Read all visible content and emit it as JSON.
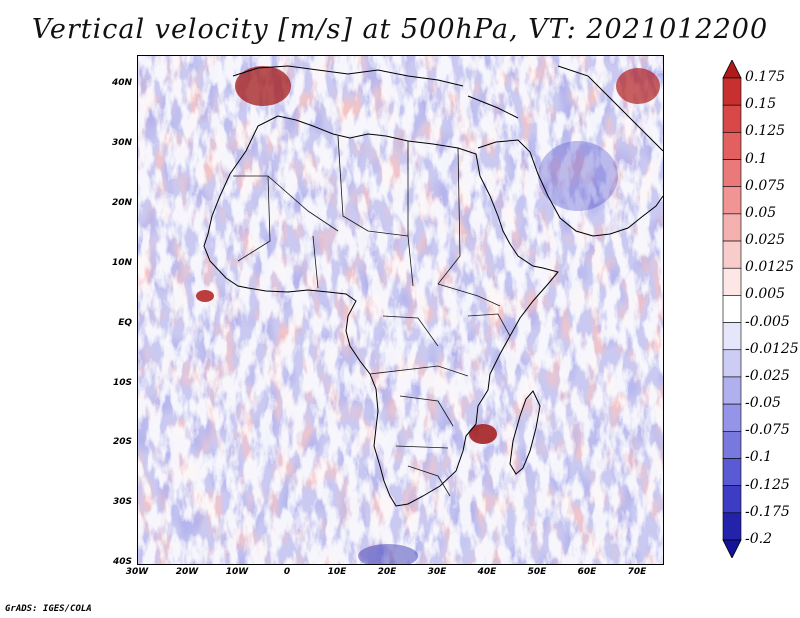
{
  "title": "Vertical velocity [m/s] at 500hPa, VT: 2021012200",
  "credit": "GrADS: IGES/COLA",
  "lat_labels": [
    "40N",
    "30N",
    "20N",
    "10N",
    "EQ",
    "10S",
    "20S",
    "30S",
    "40S"
  ],
  "lon_labels": [
    "30W",
    "20W",
    "10W",
    "0",
    "10E",
    "20E",
    "30E",
    "40E",
    "50E",
    "60E",
    "70E"
  ],
  "colorbar": {
    "labels": [
      "0.175",
      "0.15",
      "0.125",
      "0.1",
      "0.075",
      "0.05",
      "0.025",
      "0.0125",
      "0.005",
      "-0.005",
      "-0.0125",
      "-0.025",
      "-0.05",
      "-0.075",
      "-0.1",
      "-0.125",
      "-0.175",
      "-0.2"
    ],
    "colors": [
      "#b11a1a",
      "#c83030",
      "#d94848",
      "#e36060",
      "#ea7a7a",
      "#f09494",
      "#f5b0b0",
      "#f9cccc",
      "#fde6e6",
      "#ffffff",
      "#e6e6fb",
      "#ccccf5",
      "#b0b0ef",
      "#9494e8",
      "#7878df",
      "#5a5ad4",
      "#3c3cc4",
      "#2222aa",
      "#12129a"
    ]
  },
  "colors": {
    "positive": "#e05050",
    "negative": "#5a5ad4",
    "border": "#000000"
  }
}
